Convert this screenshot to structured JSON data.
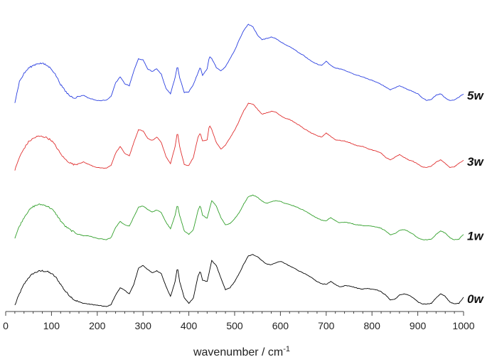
{
  "chart_data": {
    "type": "line",
    "title": "",
    "xlabel": "wavenumber / cm",
    "xlabel_sup": "-1",
    "ylabel": "",
    "xlim": [
      0,
      1000
    ],
    "xticks": [
      0,
      100,
      200,
      300,
      400,
      500,
      600,
      700,
      800,
      900,
      1000
    ],
    "y_axis_shown": false,
    "grid": false,
    "legend": "labels at right end of each trace",
    "offset_stacked": true,
    "series": [
      {
        "name": "0w",
        "color": "#000000",
        "x": [
          20,
          30,
          40,
          50,
          60,
          70,
          80,
          90,
          100,
          110,
          120,
          130,
          140,
          150,
          160,
          170,
          180,
          190,
          200,
          210,
          220,
          230,
          240,
          250,
          260,
          270,
          280,
          290,
          300,
          310,
          320,
          330,
          340,
          350,
          360,
          370,
          375,
          380,
          390,
          400,
          410,
          420,
          425,
          430,
          440,
          450,
          460,
          470,
          480,
          490,
          500,
          510,
          520,
          530,
          540,
          550,
          560,
          570,
          580,
          590,
          600,
          610,
          620,
          630,
          640,
          650,
          660,
          670,
          680,
          690,
          700,
          710,
          720,
          730,
          740,
          750,
          760,
          770,
          780,
          790,
          800,
          810,
          820,
          830,
          840,
          850,
          860,
          870,
          880,
          890,
          900,
          910,
          920,
          930,
          940,
          950,
          960,
          970,
          980,
          990,
          1000
        ],
        "y": [
          0.05,
          0.22,
          0.36,
          0.46,
          0.52,
          0.55,
          0.56,
          0.55,
          0.52,
          0.46,
          0.36,
          0.26,
          0.19,
          0.13,
          0.1,
          0.08,
          0.07,
          0.06,
          0.05,
          0.04,
          0.03,
          0.06,
          0.2,
          0.31,
          0.27,
          0.22,
          0.36,
          0.6,
          0.64,
          0.58,
          0.53,
          0.56,
          0.52,
          0.33,
          0.18,
          0.4,
          0.62,
          0.4,
          0.16,
          0.08,
          0.16,
          0.48,
          0.56,
          0.42,
          0.4,
          0.71,
          0.64,
          0.45,
          0.28,
          0.31,
          0.4,
          0.52,
          0.66,
          0.78,
          0.8,
          0.77,
          0.71,
          0.66,
          0.65,
          0.68,
          0.7,
          0.67,
          0.63,
          0.6,
          0.56,
          0.53,
          0.49,
          0.45,
          0.4,
          0.37,
          0.36,
          0.4,
          0.36,
          0.32,
          0.34,
          0.34,
          0.32,
          0.3,
          0.29,
          0.3,
          0.29,
          0.28,
          0.25,
          0.2,
          0.13,
          0.14,
          0.2,
          0.22,
          0.2,
          0.16,
          0.1,
          0.07,
          0.07,
          0.08,
          0.16,
          0.22,
          0.18,
          0.1,
          0.07,
          0.08,
          0.17
        ]
      },
      {
        "name": "1w",
        "color": "#33a02c",
        "x": [
          20,
          30,
          40,
          50,
          60,
          70,
          80,
          90,
          100,
          110,
          120,
          130,
          140,
          150,
          160,
          170,
          180,
          190,
          200,
          210,
          220,
          230,
          240,
          250,
          260,
          270,
          280,
          290,
          300,
          310,
          320,
          330,
          340,
          350,
          360,
          370,
          375,
          380,
          390,
          400,
          410,
          420,
          425,
          430,
          440,
          450,
          460,
          470,
          480,
          490,
          500,
          510,
          520,
          530,
          540,
          550,
          560,
          570,
          580,
          590,
          600,
          610,
          620,
          630,
          640,
          650,
          660,
          670,
          680,
          690,
          700,
          710,
          720,
          730,
          740,
          750,
          760,
          770,
          780,
          790,
          800,
          810,
          820,
          830,
          840,
          850,
          860,
          870,
          880,
          890,
          900,
          910,
          920,
          930,
          940,
          950,
          960,
          970,
          980,
          990,
          1000
        ],
        "y": [
          1.05,
          1.22,
          1.35,
          1.45,
          1.51,
          1.54,
          1.54,
          1.52,
          1.48,
          1.4,
          1.3,
          1.22,
          1.17,
          1.13,
          1.1,
          1.08,
          1.08,
          1.06,
          1.04,
          1.03,
          1.02,
          1.05,
          1.2,
          1.29,
          1.24,
          1.22,
          1.36,
          1.5,
          1.52,
          1.47,
          1.43,
          1.46,
          1.42,
          1.28,
          1.18,
          1.38,
          1.55,
          1.38,
          1.15,
          1.1,
          1.17,
          1.45,
          1.53,
          1.38,
          1.34,
          1.6,
          1.52,
          1.35,
          1.24,
          1.26,
          1.33,
          1.42,
          1.55,
          1.66,
          1.68,
          1.65,
          1.59,
          1.56,
          1.58,
          1.6,
          1.59,
          1.56,
          1.54,
          1.52,
          1.49,
          1.46,
          1.42,
          1.38,
          1.34,
          1.31,
          1.3,
          1.35,
          1.3,
          1.27,
          1.28,
          1.27,
          1.25,
          1.24,
          1.23,
          1.23,
          1.22,
          1.21,
          1.19,
          1.15,
          1.09,
          1.11,
          1.16,
          1.17,
          1.14,
          1.1,
          1.05,
          1.02,
          1.02,
          1.03,
          1.1,
          1.15,
          1.12,
          1.05,
          1.02,
          1.03,
          1.1
        ]
      },
      {
        "name": "3w",
        "color": "#e03030",
        "x": [
          20,
          30,
          40,
          50,
          60,
          70,
          80,
          90,
          100,
          110,
          120,
          130,
          140,
          150,
          160,
          170,
          180,
          190,
          200,
          210,
          220,
          230,
          240,
          250,
          260,
          270,
          280,
          290,
          300,
          310,
          320,
          330,
          340,
          350,
          360,
          370,
          375,
          380,
          390,
          400,
          410,
          420,
          425,
          430,
          440,
          445,
          450,
          460,
          470,
          480,
          490,
          500,
          510,
          520,
          530,
          540,
          550,
          560,
          570,
          580,
          590,
          600,
          610,
          620,
          630,
          640,
          650,
          660,
          670,
          680,
          690,
          700,
          710,
          720,
          730,
          740,
          750,
          760,
          770,
          780,
          790,
          800,
          810,
          820,
          830,
          840,
          850,
          860,
          870,
          880,
          890,
          900,
          910,
          920,
          930,
          940,
          950,
          960,
          970,
          980,
          990,
          1000
        ],
        "y": [
          2.05,
          2.24,
          2.37,
          2.47,
          2.52,
          2.55,
          2.55,
          2.53,
          2.49,
          2.4,
          2.29,
          2.21,
          2.16,
          2.13,
          2.15,
          2.17,
          2.14,
          2.11,
          2.09,
          2.08,
          2.08,
          2.12,
          2.3,
          2.4,
          2.3,
          2.26,
          2.46,
          2.65,
          2.63,
          2.52,
          2.49,
          2.54,
          2.46,
          2.25,
          2.15,
          2.4,
          2.62,
          2.4,
          2.13,
          2.12,
          2.24,
          2.54,
          2.6,
          2.48,
          2.5,
          2.72,
          2.65,
          2.46,
          2.36,
          2.42,
          2.53,
          2.64,
          2.78,
          2.93,
          3.04,
          3.03,
          2.95,
          2.88,
          2.9,
          2.92,
          2.91,
          2.86,
          2.82,
          2.8,
          2.76,
          2.72,
          2.67,
          2.63,
          2.59,
          2.56,
          2.54,
          2.6,
          2.55,
          2.5,
          2.49,
          2.48,
          2.46,
          2.43,
          2.41,
          2.4,
          2.37,
          2.35,
          2.33,
          2.3,
          2.24,
          2.2,
          2.24,
          2.28,
          2.24,
          2.2,
          2.18,
          2.14,
          2.1,
          2.09,
          2.11,
          2.17,
          2.2,
          2.15,
          2.09,
          2.1,
          2.15,
          2.2
        ]
      },
      {
        "name": "5w",
        "color": "#2a3fe0",
        "x": [
          20,
          30,
          40,
          50,
          60,
          70,
          80,
          90,
          100,
          110,
          120,
          130,
          140,
          150,
          160,
          170,
          180,
          190,
          200,
          210,
          220,
          230,
          240,
          250,
          260,
          270,
          280,
          290,
          300,
          310,
          320,
          330,
          340,
          350,
          360,
          370,
          375,
          380,
          390,
          400,
          410,
          420,
          425,
          430,
          440,
          445,
          450,
          460,
          470,
          480,
          490,
          500,
          510,
          520,
          530,
          540,
          550,
          560,
          570,
          580,
          590,
          600,
          610,
          620,
          630,
          640,
          650,
          660,
          670,
          680,
          690,
          700,
          710,
          720,
          730,
          740,
          750,
          760,
          770,
          780,
          790,
          800,
          810,
          820,
          830,
          840,
          850,
          860,
          870,
          880,
          890,
          900,
          910,
          920,
          930,
          940,
          950,
          960,
          970,
          980,
          990,
          1000
        ],
        "y": [
          3.05,
          3.36,
          3.48,
          3.56,
          3.6,
          3.63,
          3.63,
          3.6,
          3.55,
          3.45,
          3.32,
          3.22,
          3.15,
          3.12,
          3.14,
          3.16,
          3.12,
          3.1,
          3.08,
          3.08,
          3.09,
          3.14,
          3.34,
          3.43,
          3.33,
          3.3,
          3.52,
          3.7,
          3.68,
          3.55,
          3.51,
          3.55,
          3.47,
          3.26,
          3.18,
          3.42,
          3.6,
          3.42,
          3.2,
          3.21,
          3.32,
          3.49,
          3.58,
          3.45,
          3.55,
          3.73,
          3.7,
          3.57,
          3.52,
          3.58,
          3.7,
          3.82,
          3.98,
          4.12,
          4.21,
          4.17,
          4.05,
          3.98,
          4.0,
          4.02,
          4.0,
          3.95,
          3.91,
          3.88,
          3.84,
          3.79,
          3.75,
          3.7,
          3.65,
          3.62,
          3.6,
          3.66,
          3.6,
          3.56,
          3.55,
          3.53,
          3.5,
          3.47,
          3.45,
          3.43,
          3.4,
          3.38,
          3.35,
          3.32,
          3.28,
          3.24,
          3.27,
          3.3,
          3.27,
          3.24,
          3.21,
          3.18,
          3.12,
          3.08,
          3.1,
          3.16,
          3.18,
          3.12,
          3.08,
          3.09,
          3.13,
          3.18
        ]
      }
    ]
  }
}
